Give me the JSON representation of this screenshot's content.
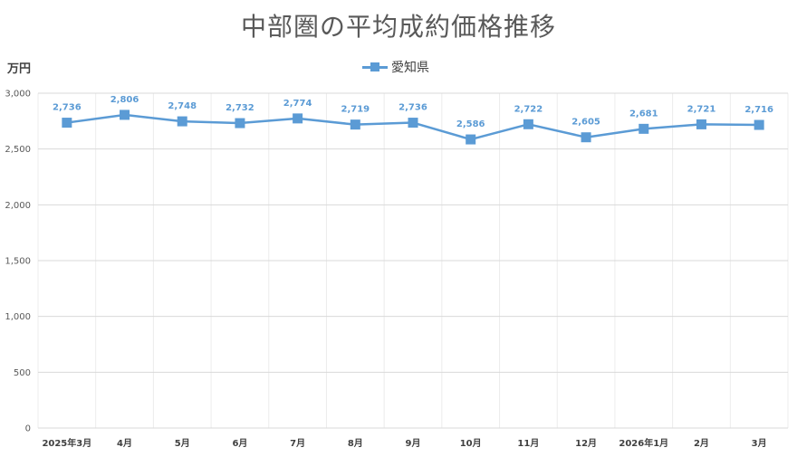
{
  "chart_data": {
    "type": "line",
    "title": "中部圏の平均成約価格推移",
    "ylabel": "万円",
    "xlabel": "",
    "ylim": [
      0,
      3000
    ],
    "yticks": [
      0,
      500,
      1000,
      1500,
      2000,
      2500,
      3000
    ],
    "ytick_labels": [
      "0",
      "500",
      "1,000",
      "1,500",
      "2,000",
      "2,500",
      "3,000"
    ],
    "categories": [
      "2025年3月",
      "4月",
      "5月",
      "6月",
      "7月",
      "8月",
      "9月",
      "10月",
      "11月",
      "12月",
      "2026年1月",
      "2月",
      "3月"
    ],
    "series": [
      {
        "name": "愛知県",
        "color": "#5b9bd5",
        "values": [
          2736,
          2806,
          2748,
          2732,
          2774,
          2719,
          2736,
          2586,
          2722,
          2605,
          2681,
          2721,
          2716
        ],
        "labels": [
          "2,736",
          "2,806",
          "2,748",
          "2,732",
          "2,774",
          "2,719",
          "2,736",
          "2,586",
          "2,722",
          "2,605",
          "2,681",
          "2,721",
          "2,716"
        ]
      }
    ],
    "grid": true,
    "legend": "top-center"
  }
}
